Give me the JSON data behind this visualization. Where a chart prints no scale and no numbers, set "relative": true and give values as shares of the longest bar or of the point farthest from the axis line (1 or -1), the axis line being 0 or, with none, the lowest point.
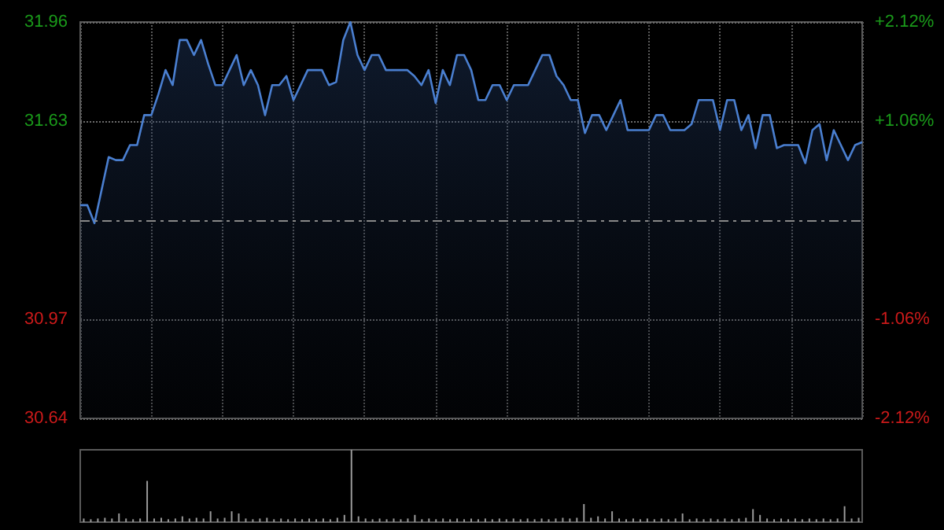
{
  "chart_data": [
    {
      "type": "area",
      "categories": [
        null,
        null,
        null,
        null,
        null,
        null,
        null,
        null,
        null,
        null,
        null,
        null,
        null,
        null,
        null,
        null,
        null,
        null,
        null,
        null,
        null,
        null,
        null,
        null,
        null,
        null,
        null,
        null,
        null,
        null,
        null,
        null,
        null,
        null,
        null,
        null,
        null,
        null,
        null,
        null,
        null,
        null,
        null,
        null,
        null,
        null,
        null,
        null,
        null,
        null,
        null,
        null,
        null,
        null,
        null,
        null,
        null,
        null,
        null,
        null,
        null,
        null,
        null,
        null,
        null,
        null,
        null,
        null,
        null,
        null,
        null,
        null,
        null,
        null,
        null,
        null,
        null,
        null,
        null,
        null,
        null,
        null,
        null,
        null,
        null,
        null,
        null,
        null,
        null,
        null,
        null,
        null,
        null,
        null,
        null,
        null,
        null,
        null,
        null,
        null,
        null,
        null,
        null,
        null,
        null,
        null,
        null,
        null,
        null,
        null,
        null
      ],
      "series": [
        {
          "color": "#4a7fd0",
          "values": [
            31.35,
            31.35,
            31.29,
            31.4,
            31.51,
            31.5,
            31.5,
            31.55,
            31.55,
            31.65,
            31.65,
            31.72,
            31.8,
            31.75,
            31.9,
            31.9,
            31.85,
            31.9,
            31.82,
            31.75,
            31.75,
            31.8,
            31.85,
            31.75,
            31.8,
            31.75,
            31.65,
            31.75,
            31.75,
            31.78,
            31.7,
            31.75,
            31.8,
            31.8,
            31.8,
            31.75,
            31.76,
            31.9,
            31.96,
            31.85,
            31.8,
            31.85,
            31.85,
            31.8,
            31.8,
            31.8,
            31.8,
            31.78,
            31.75,
            31.8,
            31.69,
            31.8,
            31.75,
            31.85,
            31.85,
            31.8,
            31.7,
            31.7,
            31.75,
            31.75,
            31.7,
            31.75,
            31.75,
            31.75,
            31.8,
            31.85,
            31.85,
            31.78,
            31.75,
            31.7,
            31.7,
            31.59,
            31.65,
            31.65,
            31.6,
            31.65,
            31.7,
            31.6,
            31.6,
            31.6,
            31.6,
            31.65,
            31.65,
            31.6,
            31.6,
            31.6,
            31.62,
            31.7,
            31.7,
            31.7,
            31.6,
            31.7,
            31.7,
            31.6,
            31.65,
            31.54,
            31.65,
            31.65,
            31.54,
            31.55,
            31.55,
            31.55,
            31.49,
            31.6,
            31.62,
            31.5,
            31.6,
            31.55,
            31.5,
            31.55,
            31.56
          ]
        }
      ],
      "ylim": [
        30.64,
        31.96
      ],
      "yticks": [
        30.64,
        30.97,
        31.63,
        31.96
      ],
      "y2lim": [
        -2.12,
        2.12
      ],
      "y2ticks": [
        {
          "value": -2.12,
          "label": "-2.12%"
        },
        {
          "value": -1.06,
          "label": "-1.06%"
        },
        {
          "value": 1.06,
          "label": "+1.06%"
        },
        {
          "value": 2.12,
          "label": "+2.12%"
        }
      ],
      "ref_lines": [
        {
          "axis": "y",
          "value": 31.3,
          "color": "#888888",
          "line_style": "dashed"
        }
      ],
      "grid": true,
      "tick_labels": "y"
    },
    {
      "type": "bar",
      "relative": true,
      "categories": [
        null,
        null,
        null,
        null,
        null,
        null,
        null,
        null,
        null,
        null,
        null,
        null,
        null,
        null,
        null,
        null,
        null,
        null,
        null,
        null,
        null,
        null,
        null,
        null,
        null,
        null,
        null,
        null,
        null,
        null,
        null,
        null,
        null,
        null,
        null,
        null,
        null,
        null,
        null,
        null,
        null,
        null,
        null,
        null,
        null,
        null,
        null,
        null,
        null,
        null,
        null,
        null,
        null,
        null,
        null,
        null,
        null,
        null,
        null,
        null,
        null,
        null,
        null,
        null,
        null,
        null,
        null,
        null,
        null,
        null,
        null,
        null,
        null,
        null,
        null,
        null,
        null,
        null,
        null,
        null,
        null,
        null,
        null,
        null,
        null,
        null,
        null,
        null,
        null,
        null,
        null,
        null,
        null,
        null,
        null,
        null,
        null,
        null,
        null,
        null,
        null,
        null,
        null,
        null,
        null,
        null,
        null,
        null,
        null,
        null,
        null
      ],
      "series": [
        {
          "color": "#9a9a9a",
          "values": [
            0.05,
            0.04,
            0.05,
            0.06,
            0.05,
            0.12,
            0.05,
            0.04,
            0.05,
            0.57,
            0.05,
            0.06,
            0.04,
            0.05,
            0.08,
            0.05,
            0.06,
            0.05,
            0.15,
            0.05,
            0.06,
            0.15,
            0.12,
            0.05,
            0.04,
            0.05,
            0.06,
            0.04,
            0.05,
            0.04,
            0.05,
            0.04,
            0.05,
            0.04,
            0.05,
            0.04,
            0.06,
            0.1,
            1.0,
            0.08,
            0.05,
            0.04,
            0.05,
            0.04,
            0.05,
            0.04,
            0.05,
            0.1,
            0.04,
            0.05,
            0.04,
            0.05,
            0.04,
            0.05,
            0.04,
            0.05,
            0.04,
            0.05,
            0.04,
            0.05,
            0.04,
            0.05,
            0.04,
            0.05,
            0.04,
            0.05,
            0.04,
            0.05,
            0.06,
            0.05,
            0.06,
            0.25,
            0.06,
            0.08,
            0.05,
            0.15,
            0.05,
            0.04,
            0.05,
            0.04,
            0.05,
            0.04,
            0.05,
            0.04,
            0.05,
            0.12,
            0.04,
            0.05,
            0.04,
            0.05,
            0.04,
            0.05,
            0.04,
            0.05,
            0.06,
            0.18,
            0.1,
            0.05,
            0.04,
            0.05,
            0.04,
            0.05,
            0.04,
            0.05,
            0.04,
            0.05,
            0.04,
            0.05,
            0.22,
            0.05,
            0.06
          ]
        }
      ],
      "grid": false,
      "tick_labels": false
    }
  ]
}
